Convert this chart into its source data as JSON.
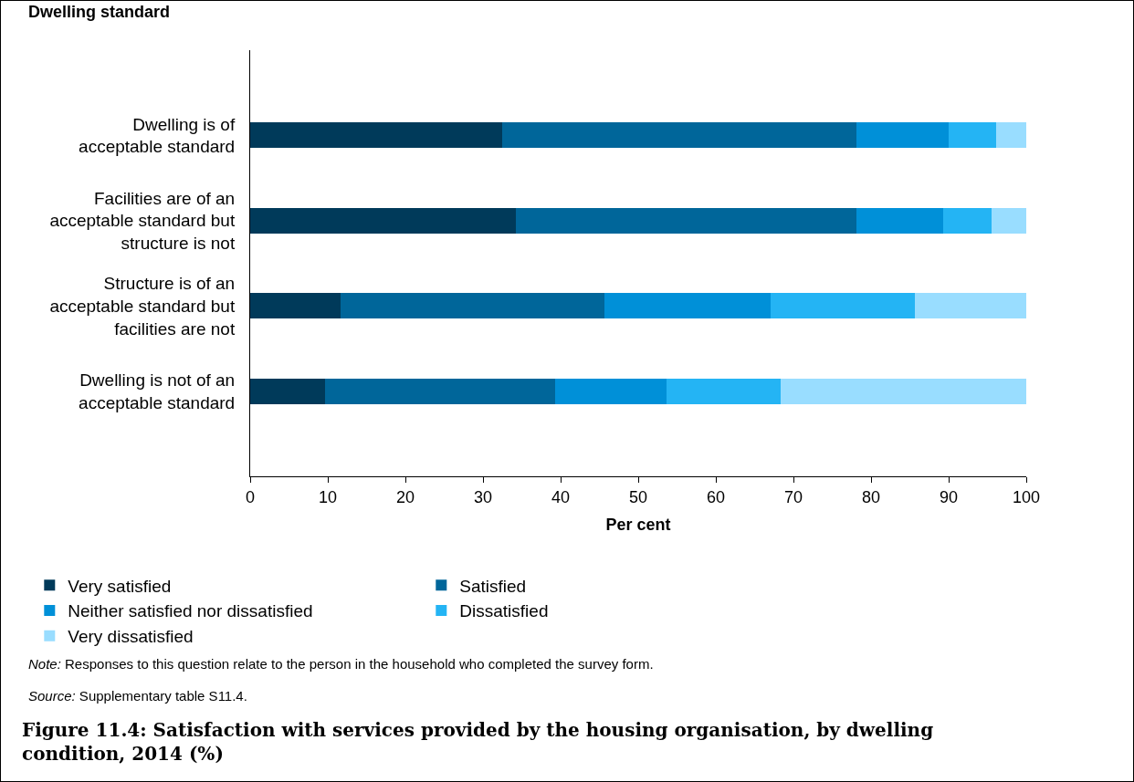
{
  "chart_data": {
    "type": "bar",
    "orientation": "horizontal",
    "stacked": true,
    "title": "Figure 11.4: Satisfaction with services provided by the housing organisation, by dwelling condition, 2014 (%)",
    "ylabel": "Dwelling standard",
    "xlabel": "Per cent",
    "categories": [
      "Dwelling is of acceptable standard",
      "Facilities are of an acceptable standard but structure is not",
      "Structure is of an acceptable standard but facilities are not",
      "Dwelling is not of an acceptable standard"
    ],
    "series": [
      {
        "name": "Very satisfied",
        "color": "#003a5a",
        "values": [
          32.5,
          34.2,
          11.6,
          9.6
        ]
      },
      {
        "name": "Satisfied",
        "color": "#00669a",
        "values": [
          45.6,
          43.9,
          34.0,
          29.7
        ]
      },
      {
        "name": "Neither satisfied nor dissatisfied",
        "color": "#0090d8",
        "values": [
          11.9,
          11.2,
          21.5,
          14.3
        ]
      },
      {
        "name": "Dissatisfied",
        "color": "#24b4f4",
        "values": [
          6.1,
          6.2,
          18.5,
          14.8
        ]
      },
      {
        "name": "Very dissatisfied",
        "color": "#99ddff",
        "values": [
          3.9,
          4.5,
          14.4,
          31.6
        ]
      }
    ],
    "xlim": [
      0,
      100
    ],
    "xticks": [
      0,
      10,
      20,
      30,
      40,
      50,
      60,
      70,
      80,
      90,
      100
    ],
    "grid": false,
    "legend": "bottom",
    "annotations": [
      "Note: Responses to this question relate to the person in the household who completed the survey form.",
      "Source: Supplementary table S11.4."
    ]
  }
}
